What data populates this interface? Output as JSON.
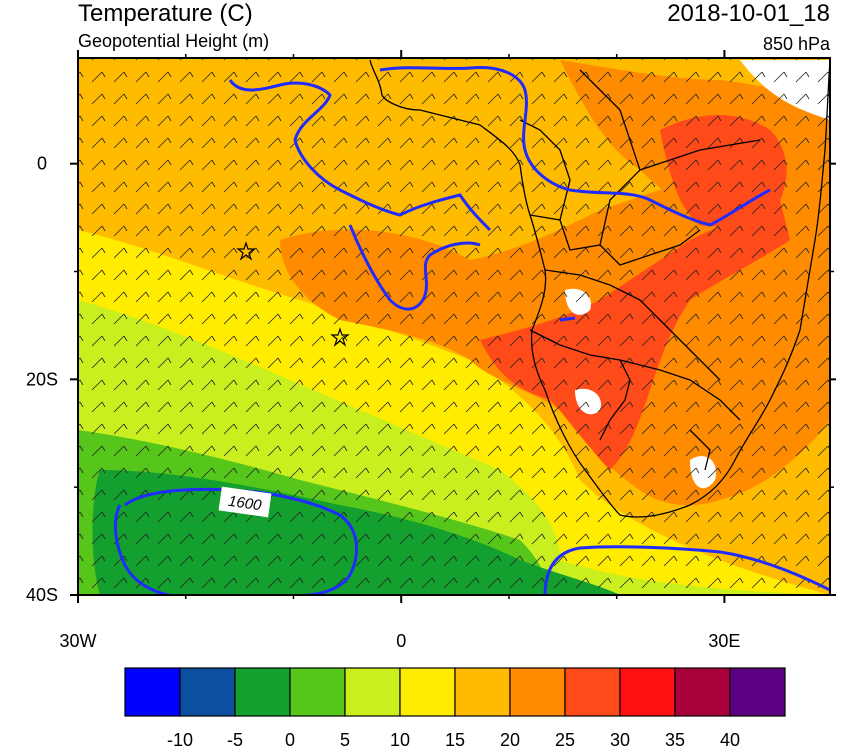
{
  "header": {
    "title": "Temperature (C)",
    "subtitle": "Geopotential Height (m)",
    "datetime": "2018-10-01_18",
    "level": "850 hPa"
  },
  "axes": {
    "y_ticks": [
      {
        "label": "0",
        "lat": 0
      },
      {
        "label": "20S",
        "lat": -20
      },
      {
        "label": "40S",
        "lat": -40
      }
    ],
    "x_ticks": [
      {
        "label": "30W",
        "lon": -30
      },
      {
        "label": "0",
        "lon": 0
      },
      {
        "label": "30E",
        "lon": 30
      }
    ]
  },
  "contour": {
    "label": "1600"
  },
  "colorbar": {
    "colors": [
      "#0000ff",
      "#0a4fa0",
      "#13a02e",
      "#56c61a",
      "#c9ef1e",
      "#ffec00",
      "#ffbb00",
      "#ff8c00",
      "#ff4a1a",
      "#ff1111",
      "#a8003a",
      "#5a0080"
    ],
    "tick_labels": [
      "-10",
      "-5",
      "0",
      "5",
      "10",
      "15",
      "20",
      "25",
      "30",
      "35",
      "40"
    ]
  },
  "colors": {
    "coast": "#000000",
    "height_contour": "#1f2bff",
    "void_white": "#ffffff"
  }
}
